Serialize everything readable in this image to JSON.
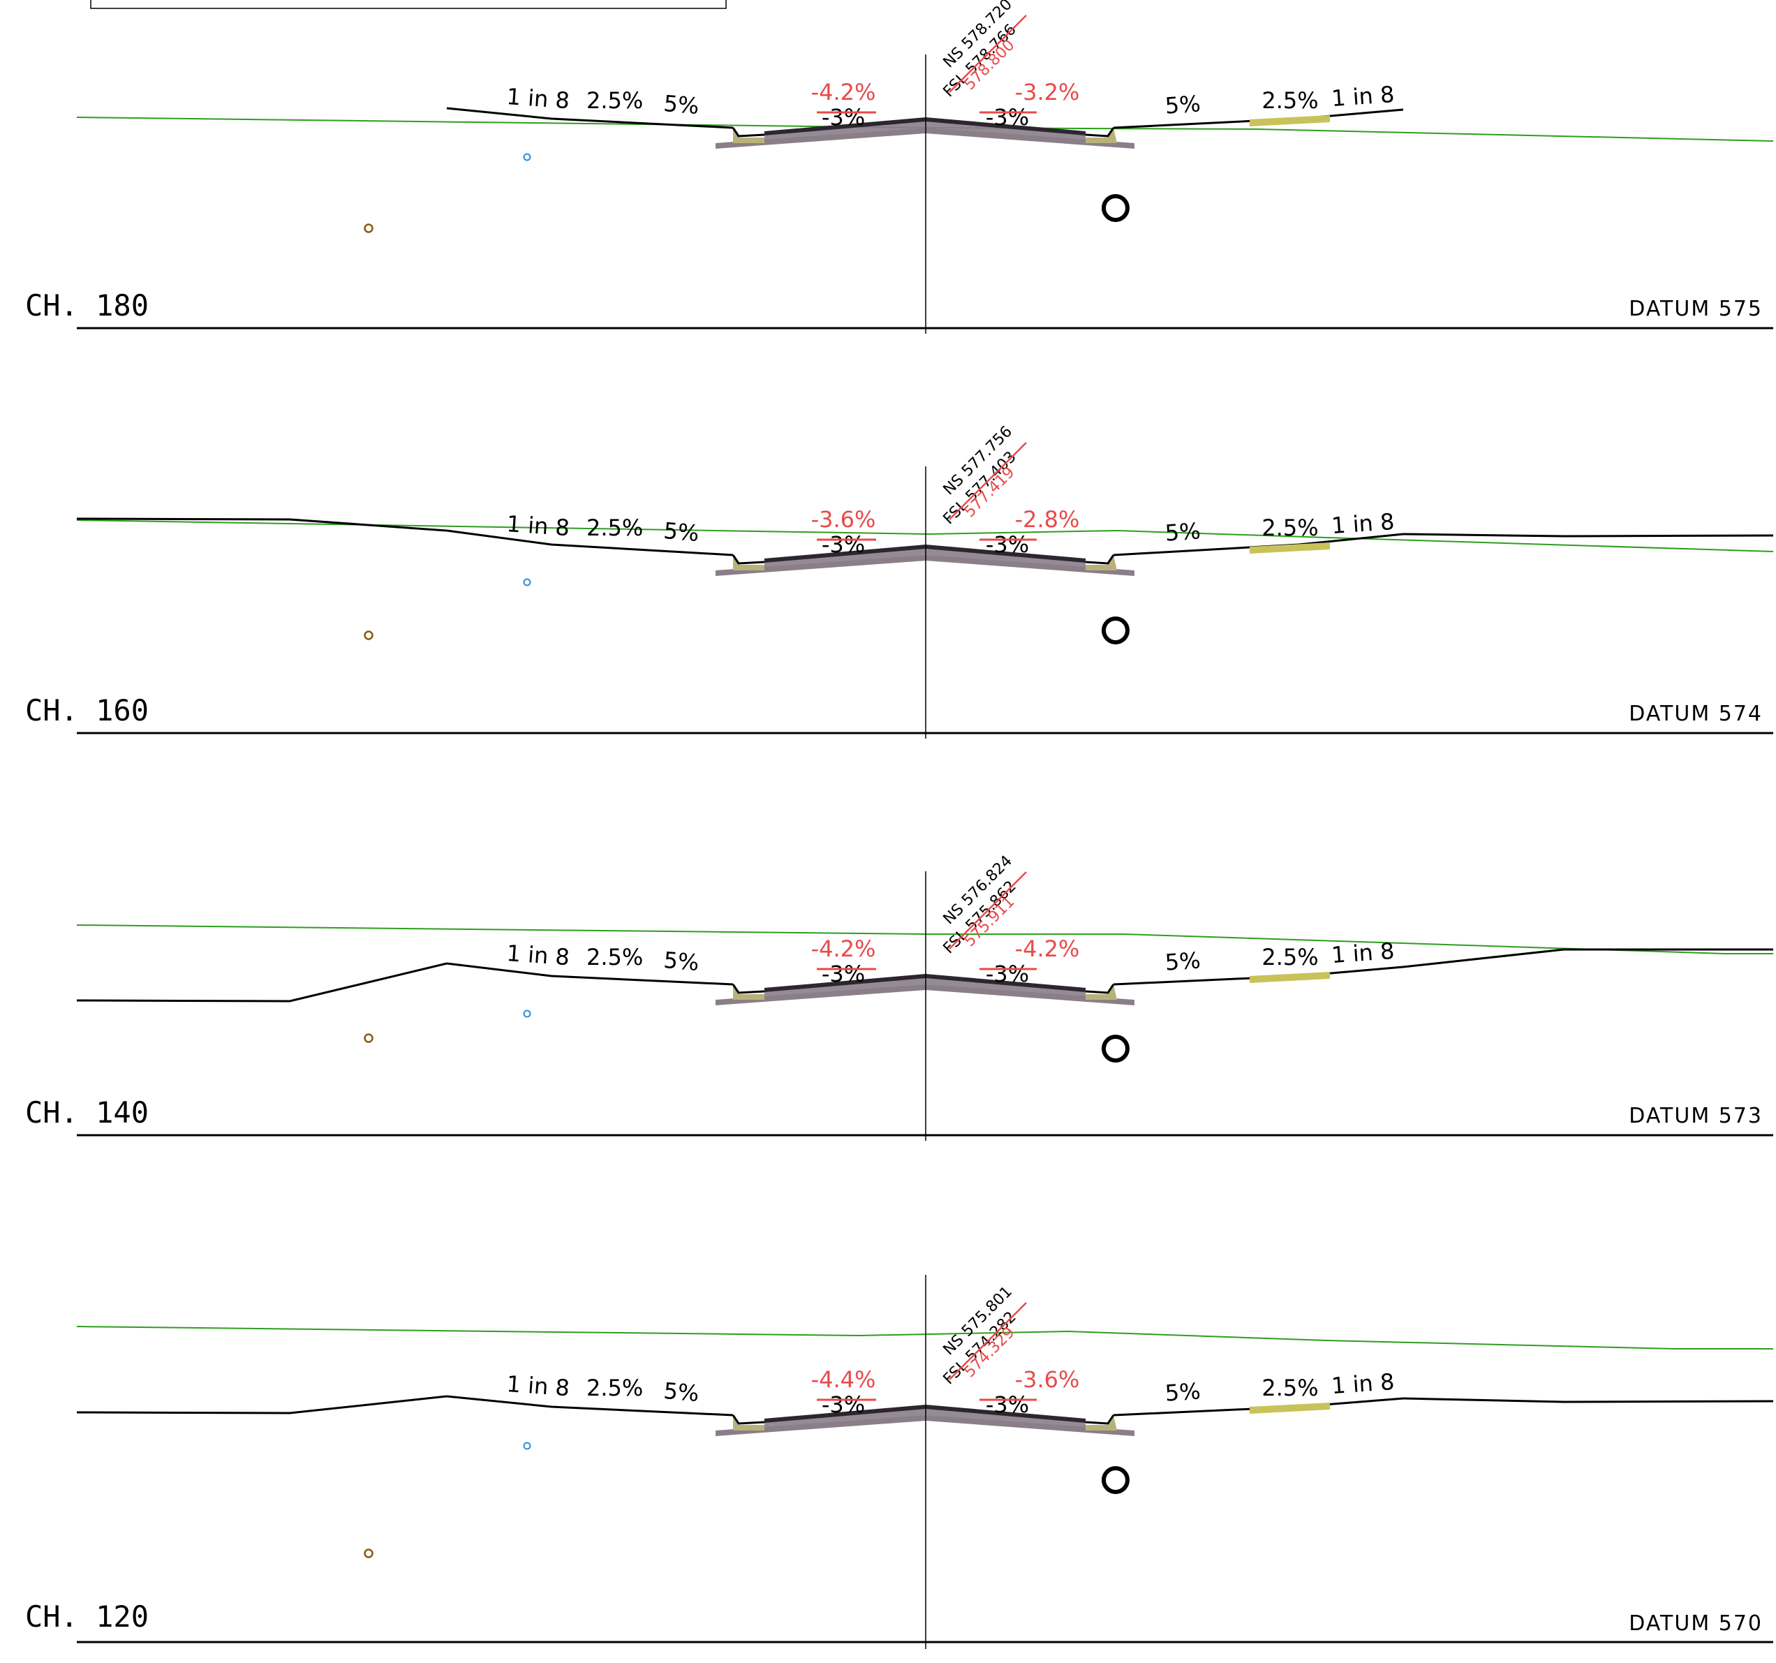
{
  "colors": {
    "design_line": "#000000",
    "natural_surface": "#2e9e1e",
    "pavement": "#2d2530",
    "base_course": "#8a7e88",
    "kerb": "#b8b27a",
    "path": "#c9c25a",
    "red_annotation": "#e84a4a",
    "blue_service": "#2a8de0",
    "brown_service": "#8a5a10"
  },
  "sections": [
    {
      "chainage": "CH. 180",
      "datum": "DATUM 575",
      "ns_level": "NS 578.720",
      "fsl_old": "FSL 578.766",
      "fsl_new": "578.800",
      "left_crossfall_new": "-4.2%",
      "left_crossfall_old": "-3%",
      "right_crossfall_new": "-3.2%",
      "right_crossfall_old": "-3%",
      "left_batter": "1 in 8",
      "left_grade_1": "2.5%",
      "left_grade_2": "5%",
      "right_grade_2": "5%",
      "right_grade_1": "2.5%",
      "right_batter": "1 in 8"
    },
    {
      "chainage": "CH. 160",
      "datum": "DATUM 574",
      "ns_level": "NS 577.756",
      "fsl_old": "FSL 577.403",
      "fsl_new": "577.419",
      "left_crossfall_new": "-3.6%",
      "left_crossfall_old": "-3%",
      "right_crossfall_new": "-2.8%",
      "right_crossfall_old": "-3%",
      "left_batter": "1 in 8",
      "left_grade_1": "2.5%",
      "left_grade_2": "5%",
      "right_grade_2": "5%",
      "right_grade_1": "2.5%",
      "right_batter": "1 in 8"
    },
    {
      "chainage": "CH. 140",
      "datum": "DATUM 573",
      "ns_level": "NS 576.824",
      "fsl_old": "FSL 575.862",
      "fsl_new": "575.911",
      "left_crossfall_new": "-4.2%",
      "left_crossfall_old": "-3%",
      "right_crossfall_new": "-4.2%",
      "right_crossfall_old": "-3%",
      "left_batter": "1 in 8",
      "left_grade_1": "2.5%",
      "left_grade_2": "5%",
      "right_grade_2": "5%",
      "right_grade_1": "2.5%",
      "right_batter": "1 in 8"
    },
    {
      "chainage": "CH. 120",
      "datum": "DATUM 570",
      "ns_level": "NS 575.801",
      "fsl_old": "FSL 574.282",
      "fsl_new": "574.329",
      "left_crossfall_new": "-4.4%",
      "left_crossfall_old": "-3%",
      "right_crossfall_new": "-3.6%",
      "right_crossfall_old": "-3%",
      "left_batter": "1 in 8",
      "left_grade_1": "2.5%",
      "left_grade_2": "5%",
      "right_grade_2": "5%",
      "right_grade_1": "2.5%",
      "right_batter": "1 in 8"
    }
  ]
}
